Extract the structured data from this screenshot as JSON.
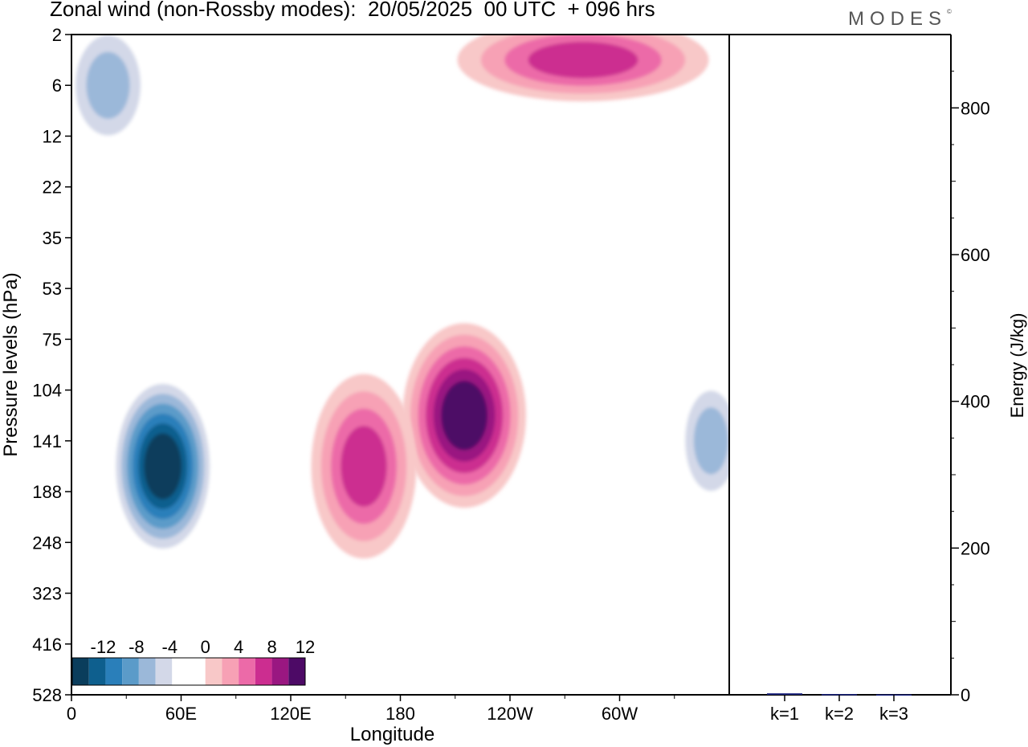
{
  "title": "Zonal wind (non-Rossby modes):  20/05/2025  00 UTC  + 096 hrs",
  "logo": "MODES",
  "chart_data": [
    {
      "type": "heatmap",
      "title": "Zonal wind (non-Rossby modes):  20/05/2025  00 UTC  + 096 hrs",
      "xlabel": "Longitude",
      "ylabel": "Pressure levels (hPa)",
      "x_ticks": [
        "0",
        "60E",
        "120E",
        "180",
        "120W",
        "60W"
      ],
      "x_tick_degrees": [
        0,
        60,
        120,
        180,
        240,
        300
      ],
      "xlim": [
        0,
        360
      ],
      "y_ticks": [
        "2",
        "6",
        "12",
        "22",
        "35",
        "53",
        "75",
        "104",
        "141",
        "188",
        "248",
        "323",
        "416",
        "528"
      ],
      "colorbar": {
        "labels": [
          "-12",
          "-8",
          "-4",
          "0",
          "4",
          "8",
          "12"
        ],
        "colors": [
          "#0a3d5c",
          "#0e5f8e",
          "#2a7fba",
          "#5b9bc9",
          "#9bb8d9",
          "#d3d8e8",
          "#ffffff",
          "#ffffff",
          "#f8c8c8",
          "#f7a1b5",
          "#ec6aa8",
          "#cc2d90",
          "#9a1781",
          "#4d0a66"
        ]
      },
      "features": [
        {
          "sign": "negative",
          "peak": -14,
          "lon_range": [
            30,
            70
          ],
          "level_range": [
            "104",
            "248"
          ]
        },
        {
          "sign": "positive",
          "peak": 11,
          "lon_range": [
            190,
            240
          ],
          "level_range": [
            "75",
            "188"
          ]
        },
        {
          "sign": "positive",
          "peak": 8,
          "lon_range": [
            140,
            180
          ],
          "level_range": [
            "104",
            "248"
          ]
        },
        {
          "sign": "positive",
          "peak": 8,
          "lon_range": [
            220,
            340
          ],
          "level_range": [
            "2",
            "6"
          ]
        },
        {
          "sign": "negative",
          "peak": -6,
          "lon_range": [
            5,
            35
          ],
          "level_range": [
            "2",
            "12"
          ]
        },
        {
          "sign": "negative",
          "peak": -6,
          "lon_range": [
            340,
            360
          ],
          "level_range": [
            "104",
            "188"
          ]
        }
      ]
    },
    {
      "type": "bar",
      "categories": [
        "k=1",
        "k=2",
        "k=3"
      ],
      "values": [
        2,
        1,
        0.5
      ],
      "ylabel": "Energy (J/kg)",
      "ylim": [
        0,
        900
      ],
      "y_ticks": [
        0,
        200,
        400,
        600,
        800
      ],
      "bar_color": "#1a237e"
    }
  ]
}
